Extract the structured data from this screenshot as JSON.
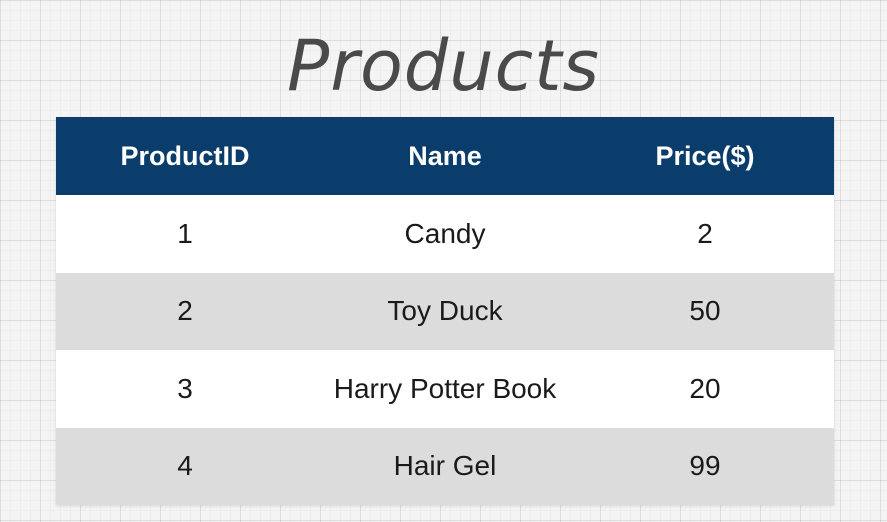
{
  "title": "Products",
  "table": {
    "headers": [
      "ProductID",
      "Name",
      "Price($)"
    ],
    "rows": [
      [
        "1",
        "Candy",
        "2"
      ],
      [
        "2",
        "Toy Duck",
        "50"
      ],
      [
        "3",
        "Harry Potter Book",
        "20"
      ],
      [
        "4",
        "Hair Gel",
        "99"
      ]
    ]
  },
  "colors": {
    "header_background": "#0a3d6b",
    "header_text": "#ffffff",
    "row_odd": "#ffffff",
    "row_even": "#dcdcdd",
    "title_text": "#4a4a4a"
  }
}
